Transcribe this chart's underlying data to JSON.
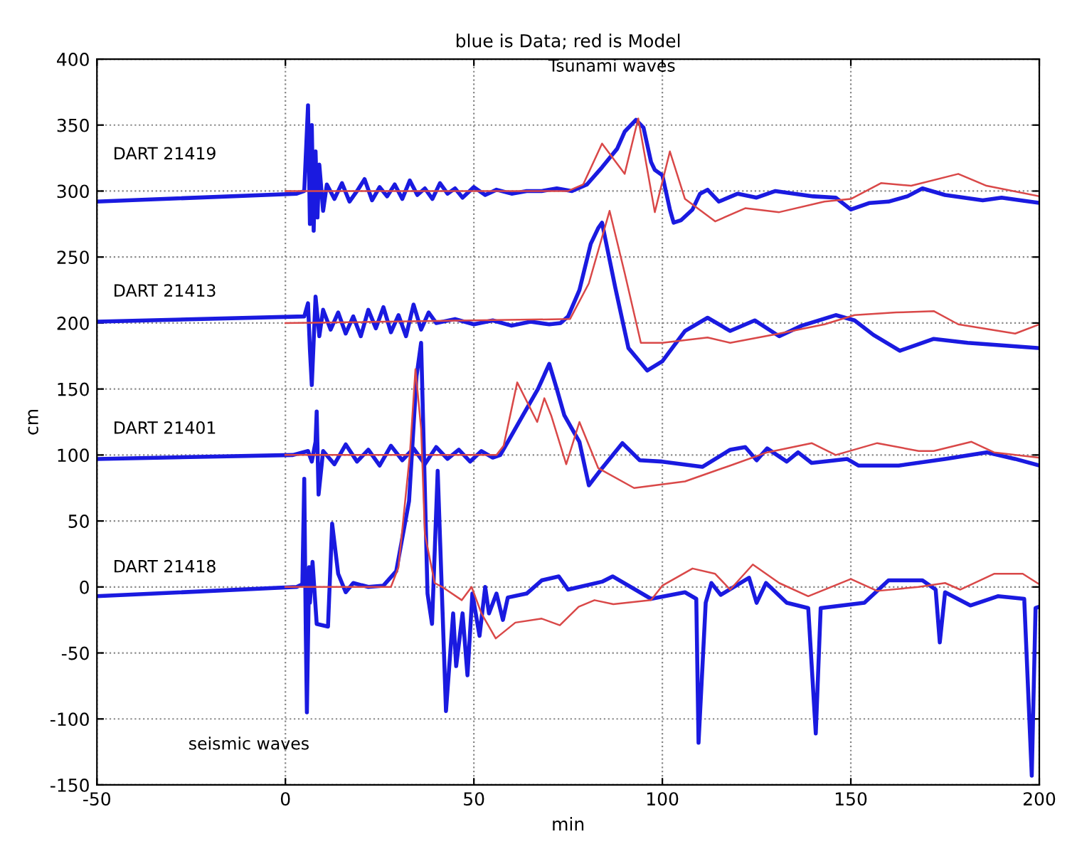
{
  "chart_data": {
    "type": "line",
    "title": "blue is Data; red is Model",
    "xlabel": "min",
    "ylabel": "cm",
    "xlim": [
      -50,
      200
    ],
    "ylim": [
      -150,
      400
    ],
    "xticks": [
      -50,
      0,
      50,
      100,
      150,
      200
    ],
    "yticks": [
      -150,
      -100,
      -50,
      0,
      50,
      100,
      150,
      200,
      250,
      300,
      350,
      400
    ],
    "grid": true,
    "annotations": [
      "DART 21419",
      "DART 21413",
      "DART 21401",
      "DART 21418",
      "Tsunami waves",
      "seismic waves"
    ],
    "series": [
      {
        "color": "#1a1ae0",
        "x": [
          -50,
          3,
          5,
          6,
          6.5,
          7,
          7.5,
          8,
          8.5,
          9,
          10,
          11,
          13,
          15,
          17,
          19,
          21,
          23,
          25,
          27,
          29,
          31,
          33,
          35,
          37,
          39,
          41,
          43,
          45,
          47,
          50,
          53,
          56,
          60,
          64,
          68,
          72,
          76,
          80,
          84,
          86,
          88,
          90,
          93,
          95,
          97,
          98,
          100,
          102,
          103,
          105,
          108,
          110,
          112,
          115,
          120,
          125,
          130,
          135,
          140,
          146,
          150,
          155,
          160,
          165,
          169,
          175,
          180,
          185,
          190,
          195,
          200
        ],
        "values": [
          292,
          298,
          300,
          365,
          275,
          350,
          270,
          330,
          280,
          320,
          285,
          305,
          294,
          306,
          292,
          300,
          309,
          293,
          303,
          296,
          305,
          294,
          308,
          297,
          302,
          294,
          306,
          298,
          302,
          295,
          303,
          297,
          301,
          298,
          300,
          300,
          302,
          300,
          305,
          318,
          325,
          332,
          345,
          354,
          348,
          322,
          316,
          312,
          286,
          276,
          278,
          286,
          298,
          301,
          292,
          298,
          295,
          300,
          298,
          296,
          295,
          286,
          291,
          292,
          296,
          302,
          297,
          295,
          293,
          295,
          293,
          291
        ]
      },
      {
        "color": "#d94848",
        "x": [
          0,
          75,
          79,
          84,
          90,
          93.6,
          98,
          102,
          106,
          114,
          122,
          131,
          143,
          150,
          158,
          166,
          178.5,
          186,
          200
        ],
        "values": [
          300,
          300,
          305,
          336,
          313,
          355,
          284,
          330,
          294,
          277,
          287,
          284,
          292,
          294,
          306,
          304,
          313,
          304,
          296
        ]
      },
      {
        "color": "#1a1ae0",
        "x": [
          -50,
          5,
          6,
          6.5,
          7,
          8,
          9,
          10,
          12,
          14,
          16,
          18,
          20,
          22,
          24,
          26,
          28,
          30,
          32,
          34,
          36,
          38,
          40,
          45,
          50,
          55,
          60,
          65,
          70,
          73,
          75,
          78,
          81,
          83,
          84,
          87.5,
          91,
          96,
          100,
          106,
          112,
          118,
          124.5,
          131,
          137,
          146,
          151,
          156,
          163,
          172,
          181,
          200
        ],
        "values": [
          201,
          205,
          215,
          180,
          153,
          220,
          190,
          210,
          195,
          208,
          192,
          205,
          190,
          210,
          196,
          212,
          193,
          206,
          190,
          214,
          195,
          208,
          200,
          203,
          199,
          202,
          198,
          201,
          199,
          200,
          205,
          225,
          260,
          272,
          276,
          227,
          181,
          164,
          171,
          194,
          204,
          194,
          202,
          190,
          198,
          206,
          202,
          191,
          179,
          188,
          185,
          181
        ]
      },
      {
        "color": "#d94848",
        "x": [
          0,
          75.5,
          80.5,
          86,
          90,
          94.3,
          100,
          112,
          118,
          131,
          143,
          151,
          162,
          172,
          178.5,
          193.6,
          200
        ],
        "values": [
          200,
          203,
          230,
          285,
          238,
          185,
          185,
          189,
          185,
          192,
          199,
          206,
          208,
          209,
          199,
          192,
          199
        ]
      },
      {
        "color": "#1a1ae0",
        "x": [
          -50,
          2,
          6,
          7,
          8,
          8.3,
          8.8,
          10,
          13,
          16,
          19,
          22,
          25,
          28,
          31,
          34,
          37,
          40,
          43,
          46,
          49,
          52,
          55,
          57,
          60,
          63,
          67,
          70,
          72,
          74,
          76,
          78,
          80.5,
          84,
          89.4,
          94,
          100,
          110.6,
          118,
          122,
          125,
          127.8,
          133,
          136,
          139.6,
          149,
          152,
          162.7,
          175,
          186,
          193.6,
          200
        ],
        "values": [
          97,
          100,
          103,
          95,
          110,
          133,
          70,
          103,
          93,
          108,
          95,
          104,
          92,
          107,
          96,
          105,
          93,
          106,
          97,
          104,
          95,
          103,
          98,
          100,
          115,
          130,
          150,
          169,
          150,
          130,
          120,
          110,
          77,
          90,
          109,
          96,
          95,
          91,
          104,
          106,
          96,
          105,
          95,
          102,
          94,
          97,
          92,
          92,
          97,
          102,
          97,
          92
        ]
      },
      {
        "color": "#d94848",
        "x": [
          0,
          56,
          57.9,
          61.5,
          66.8,
          68.7,
          70.5,
          74.5,
          78,
          83,
          92.5,
          106,
          118,
          127.8,
          139.6,
          146,
          157,
          168,
          172,
          182,
          188,
          200
        ],
        "values": [
          100,
          100,
          107,
          155,
          125,
          143,
          130,
          93,
          125,
          90,
          75,
          80,
          92,
          102,
          109,
          100,
          109,
          103,
          103,
          110,
          102,
          98
        ]
      },
      {
        "color": "#1a1ae0",
        "x": [
          -50,
          3,
          4.5,
          5,
          5.4,
          5.7,
          6.3,
          6.5,
          7.2,
          8.3,
          11.3,
          12.4,
          14,
          16,
          18,
          22,
          26,
          29.4,
          32.8,
          34.8,
          36,
          37.7,
          38.9,
          40.4,
          42.6,
          44.5,
          45.3,
          47,
          48.3,
          49.6,
          51.5,
          53,
          54,
          56,
          57.7,
          59,
          64,
          68,
          72.5,
          75,
          84,
          86.8,
          97,
          106,
          109,
          109.6,
          111.5,
          113,
          115.5,
          123,
          125,
          127.5,
          133,
          138.7,
          140.7,
          142,
          153.6,
          160,
          169,
          172.5,
          173.6,
          175,
          181.7,
          189,
          196,
          198,
          199,
          200
        ],
        "values": [
          -7,
          0,
          2,
          82,
          -33,
          -95,
          15,
          -12,
          19,
          -28,
          -30,
          48,
          10,
          -4,
          3,
          0,
          1,
          12,
          65,
          160,
          185,
          -5,
          -28,
          88,
          -94,
          -20,
          -60,
          -20,
          -67,
          -5,
          -37,
          0,
          -20,
          -5,
          -25,
          -8,
          -5,
          5,
          8,
          -2,
          4,
          8,
          -9,
          -4,
          -9,
          -118,
          -12,
          3,
          -6,
          7,
          -12,
          3,
          -12,
          -16,
          -111,
          -16,
          -12,
          5,
          5,
          -2,
          -42,
          -4,
          -14,
          -7,
          -9,
          -143,
          -16,
          -15
        ]
      },
      {
        "color": "#d94848",
        "x": [
          0,
          28,
          30,
          33,
          34.5,
          36,
          37,
          39.6,
          41.6,
          46.8,
          49.4,
          52,
          55.8,
          61,
          68,
          72.8,
          77.8,
          82,
          87,
          97,
          100,
          108,
          114,
          118,
          124,
          131,
          138.7,
          150,
          157,
          168,
          175,
          179,
          188,
          195.6,
          200
        ],
        "values": [
          0,
          0,
          15,
          100,
          165,
          120,
          40,
          3,
          0,
          -10,
          0,
          -20,
          -39,
          -27,
          -24,
          -29,
          -15,
          -10,
          -13,
          -10,
          1,
          14,
          10,
          -2,
          17,
          3,
          -7,
          6,
          -3,
          0,
          3,
          -2,
          10,
          10,
          2
        ]
      }
    ]
  }
}
